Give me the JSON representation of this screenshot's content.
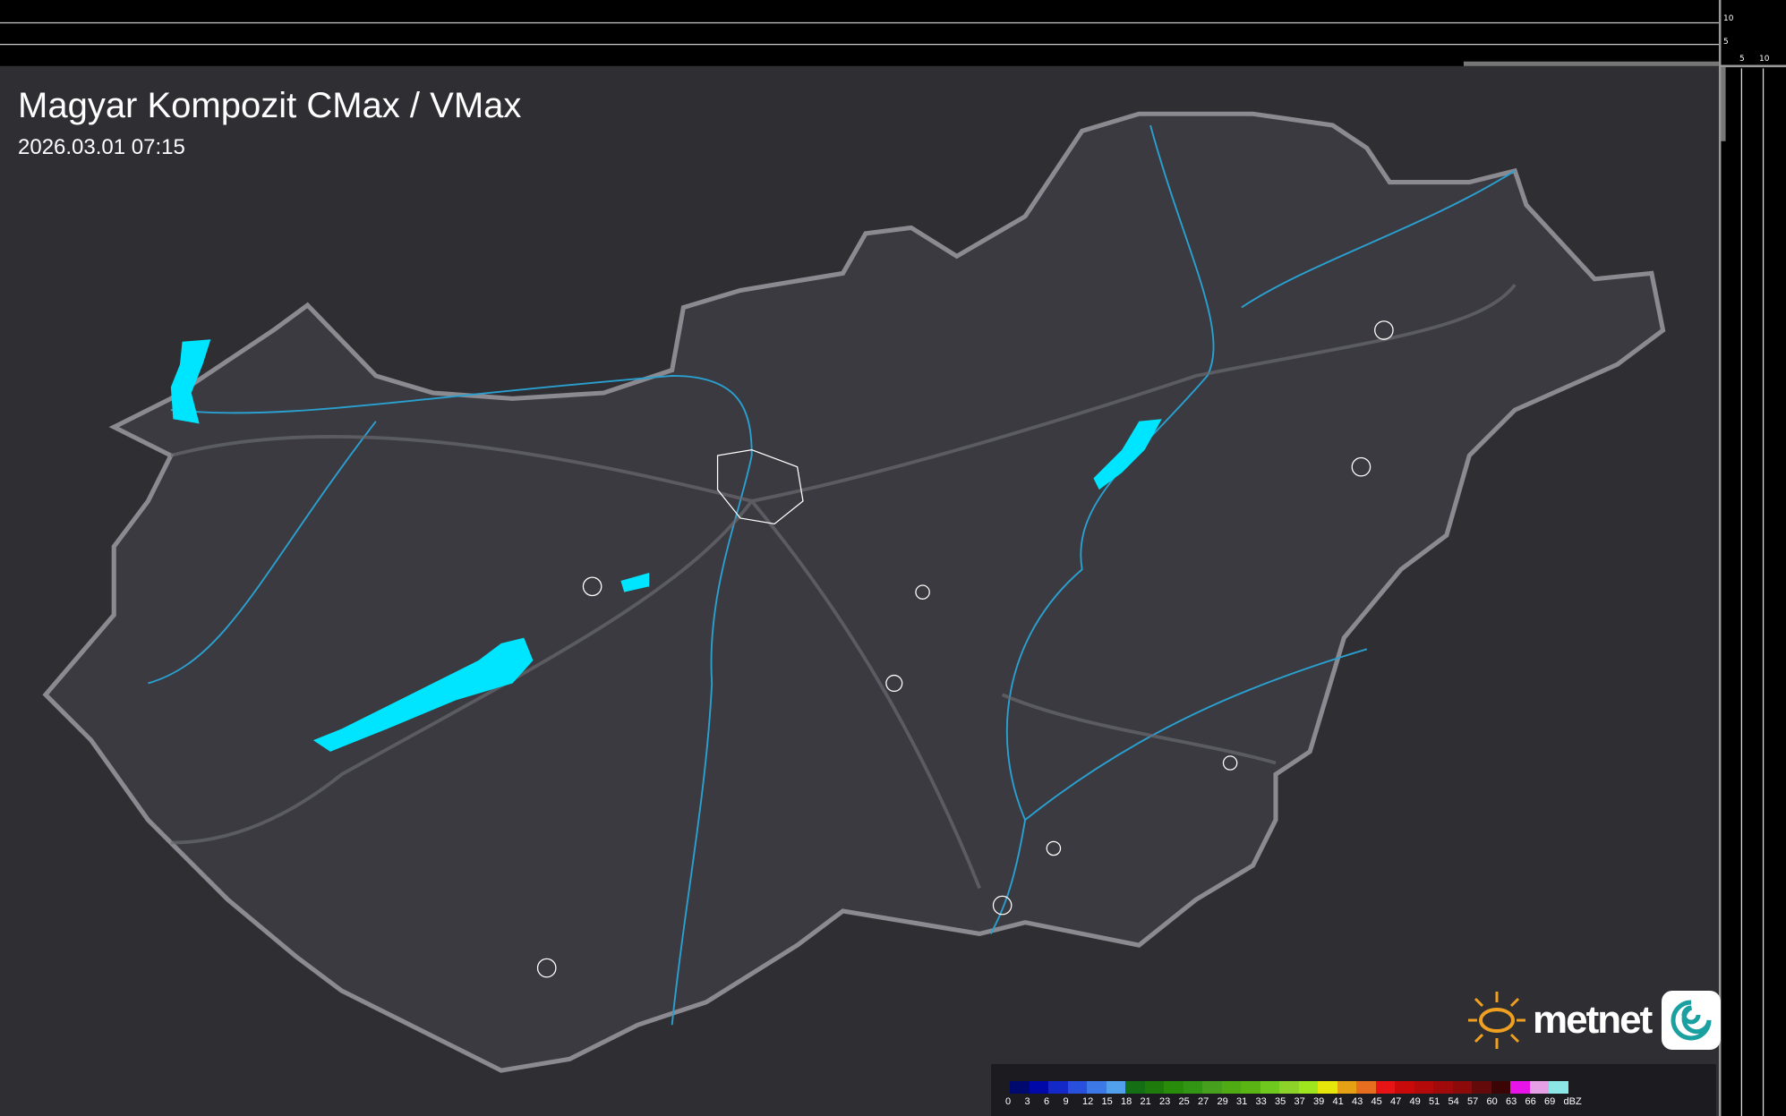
{
  "header": {
    "title": "Magyar Kompozit CMax / VMax",
    "timestamp": "2026.03.01 07:15"
  },
  "profile_axes": {
    "top_labels": [
      "10",
      "5"
    ],
    "side_labels": [
      "5",
      "10"
    ]
  },
  "logo": {
    "text": "metnet",
    "sun_color": "#f0a020",
    "icon_color": "#1aa0a0"
  },
  "colors": {
    "background": "#2e2e33",
    "country_fill": "#3a3a40",
    "border": "#8a8a90",
    "rivers": "#2aa0d0",
    "lakes": "#00e5ff",
    "cities": "#ffffff"
  },
  "legend": {
    "unit": "dBZ",
    "labels": [
      "0",
      "3",
      "6",
      "9",
      "12",
      "15",
      "18",
      "21",
      "23",
      "25",
      "27",
      "29",
      "31",
      "33",
      "35",
      "37",
      "39",
      "41",
      "43",
      "45",
      "47",
      "49",
      "51",
      "54",
      "57",
      "60",
      "63",
      "66",
      "69"
    ],
    "colors": [
      "#000a6e",
      "#0008a8",
      "#1428c8",
      "#2850dc",
      "#3c78e6",
      "#50a0ec",
      "#146e14",
      "#1e7a0a",
      "#288c0a",
      "#329614",
      "#46a01e",
      "#50aa14",
      "#5ab414",
      "#6ec81e",
      "#8cd228",
      "#a0e61e",
      "#e6e60a",
      "#e6a014",
      "#e66e1e",
      "#e61414",
      "#c80a0a",
      "#b40a0a",
      "#a00a0a",
      "#8c0a0a",
      "#640a0a",
      "#3c0505",
      "#e614e6",
      "#e6a0e6",
      "#8ce6e6"
    ]
  }
}
